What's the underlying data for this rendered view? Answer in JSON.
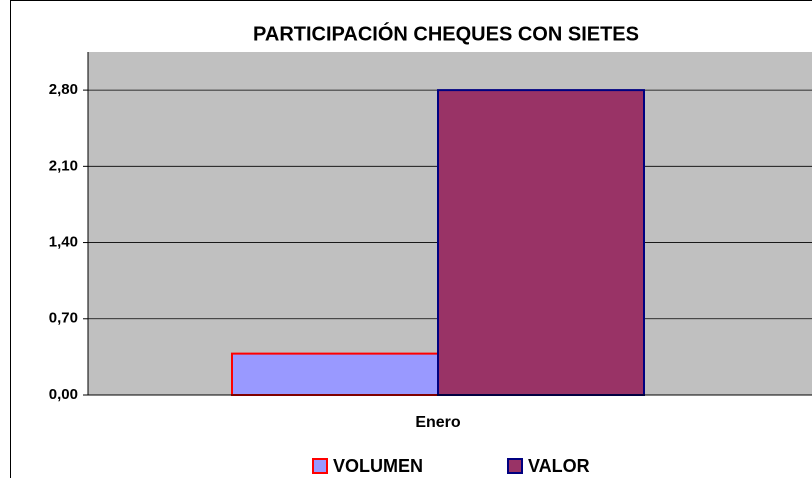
{
  "chart_data": {
    "type": "bar",
    "title": "PARTICIPACIÓN CHEQUES CON SIETES",
    "categories": [
      "Enero"
    ],
    "series": [
      {
        "name": "VOLUMEN",
        "color": "#9999ff",
        "edge": "#ff0000",
        "values": [
          0.38
        ]
      },
      {
        "name": "VALOR",
        "color": "#993366",
        "edge": "#000080",
        "values": [
          2.8
        ]
      }
    ],
    "ylim": [
      0,
      3.15
    ],
    "yticks": [
      {
        "value": 0,
        "label": "0,00"
      },
      {
        "value": 0.7,
        "label": "0,70"
      },
      {
        "value": 1.4,
        "label": "1,40"
      },
      {
        "value": 2.1,
        "label": "2,10"
      },
      {
        "value": 2.8,
        "label": "2,80"
      }
    ],
    "grid": true,
    "background": "#c0c0c0",
    "legend": "bottom"
  }
}
